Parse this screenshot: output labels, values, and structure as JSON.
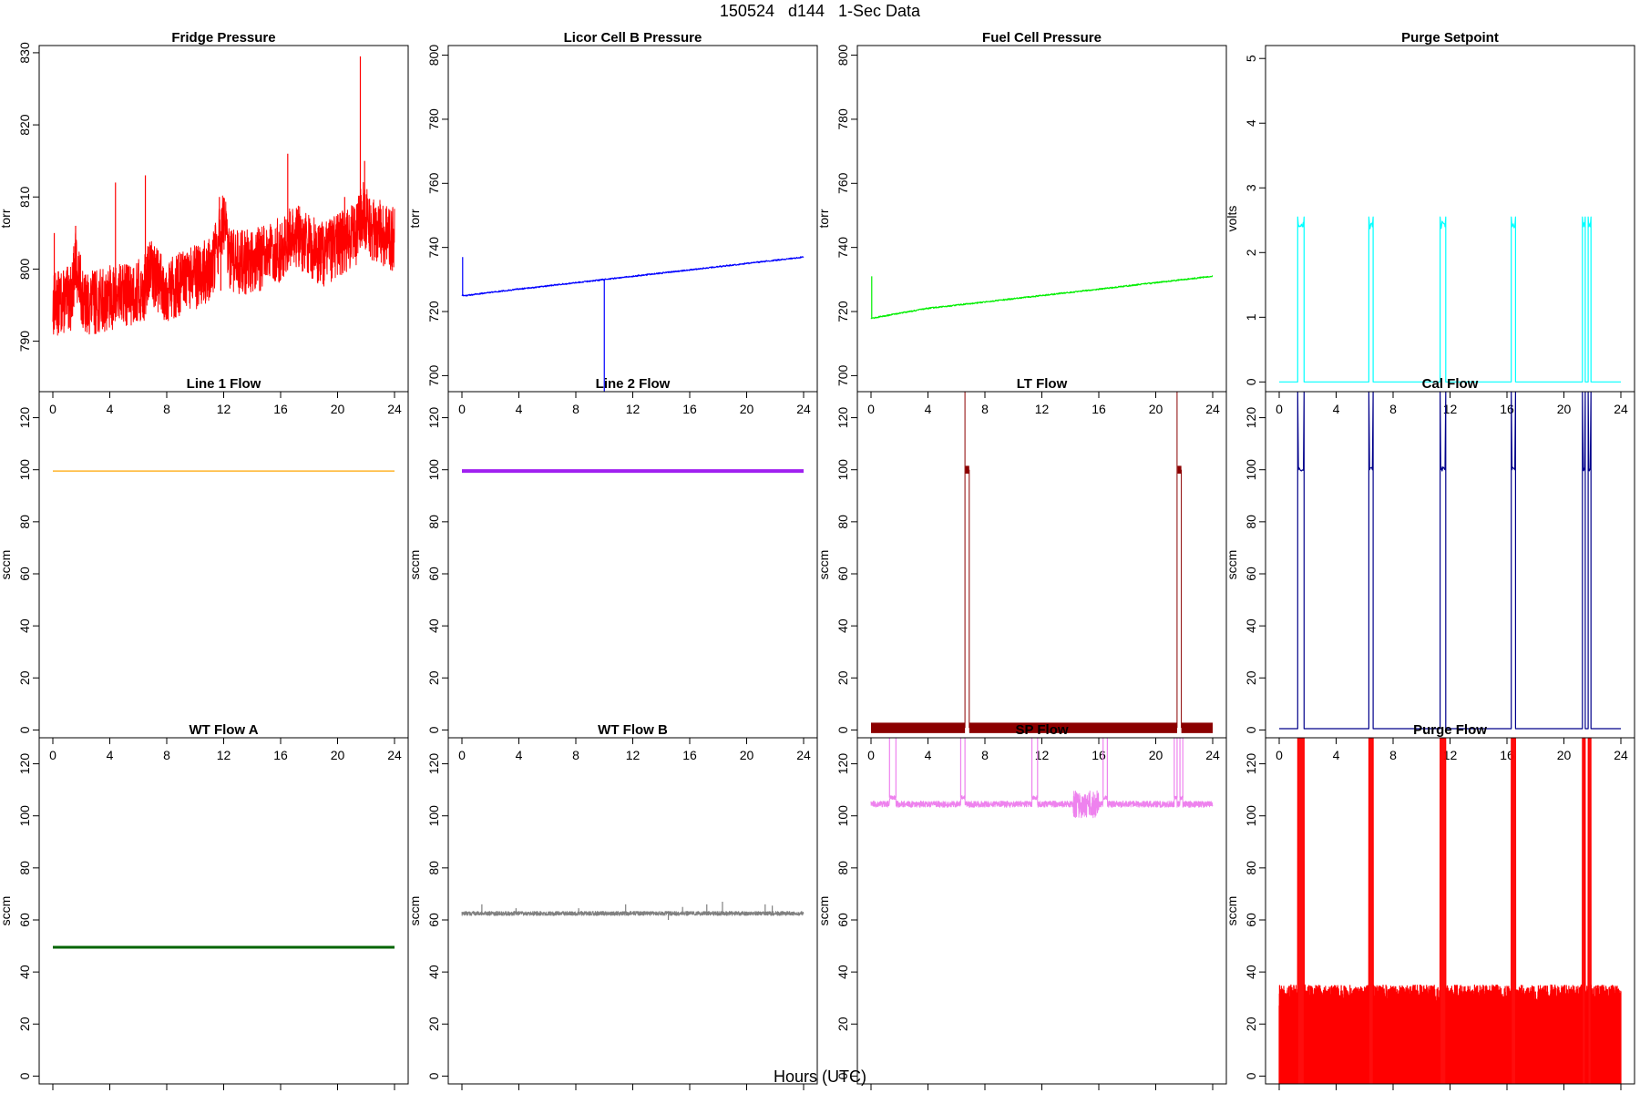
{
  "page": {
    "title": "150524   d144   1-Sec Data",
    "x_axis_label": "Hours (UTC)"
  },
  "chart_data": [
    {
      "type": "line",
      "title": "Fridge Pressure",
      "ylabel": "torr",
      "color": "#ff0000",
      "xlim": [
        0,
        24
      ],
      "ylim": [
        783,
        831
      ],
      "yticks": [
        790,
        800,
        810,
        820,
        830
      ],
      "style": "noisy",
      "noise": 4.5,
      "series": [
        {
          "x": [
            0,
            1.3,
            1.6,
            2.2,
            4,
            6.4,
            6.8,
            8,
            11.2,
            12.0,
            12.4,
            14,
            16.3,
            16.8,
            19,
            21.3,
            21.8,
            22.2,
            24
          ],
          "y": [
            795,
            796,
            801,
            795,
            796,
            797,
            800,
            797,
            800,
            807,
            801,
            801,
            803,
            805,
            802,
            805,
            808,
            806,
            804
          ]
        }
      ],
      "spikes": [
        [
          0.1,
          805
        ],
        [
          1.6,
          806
        ],
        [
          4.4,
          812
        ],
        [
          6.5,
          813
        ],
        [
          11.7,
          810
        ],
        [
          11.8,
          797
        ],
        [
          16.5,
          816
        ],
        [
          20.5,
          810
        ],
        [
          21.6,
          829.5
        ],
        [
          21.9,
          815
        ]
      ]
    },
    {
      "type": "line",
      "title": "Licor Cell B Pressure",
      "ylabel": "torr",
      "color": "#0000ff",
      "xlim": [
        0,
        24
      ],
      "ylim": [
        695,
        803
      ],
      "yticks": [
        700,
        720,
        740,
        760,
        780,
        800
      ],
      "style": "line",
      "series": [
        {
          "x": [
            0,
            0.3,
            2,
            4,
            6,
            8,
            10,
            12,
            14,
            16,
            18,
            20,
            22,
            24
          ],
          "y": [
            725,
            725,
            726,
            727,
            728,
            729,
            730,
            731,
            732,
            733,
            734,
            735,
            736,
            737
          ]
        }
      ],
      "spikes": [
        [
          0.05,
          737
        ],
        [
          10,
          695
        ]
      ]
    },
    {
      "type": "line",
      "title": "Fuel Cell Pressure",
      "ylabel": "torr",
      "color": "#00ee00",
      "xlim": [
        0,
        24
      ],
      "ylim": [
        695,
        803
      ],
      "yticks": [
        700,
        720,
        740,
        760,
        780,
        800
      ],
      "style": "line",
      "series": [
        {
          "x": [
            0,
            0.2,
            2,
            4,
            6,
            8,
            10,
            12,
            14,
            16,
            18,
            20,
            22,
            24
          ],
          "y": [
            718,
            718,
            719.5,
            721,
            722,
            723,
            724,
            725,
            726,
            727,
            728,
            729,
            730,
            731
          ]
        }
      ],
      "spikes": [
        [
          0.05,
          731
        ]
      ]
    },
    {
      "type": "line",
      "title": "Purge Setpoint",
      "ylabel": "volts",
      "color": "#00ffff",
      "xlim": [
        0,
        24
      ],
      "ylim": [
        -0.15,
        5.2
      ],
      "yticks": [
        0,
        1,
        2,
        3,
        4,
        5
      ],
      "style": "pulses",
      "base": 0,
      "level": 2.4,
      "peak": 2.55,
      "pulses": [
        [
          1.3,
          1.75
        ],
        [
          6.3,
          6.6
        ],
        [
          11.3,
          11.7
        ],
        [
          16.3,
          16.6
        ],
        [
          21.3,
          21.5
        ],
        [
          21.7,
          21.9
        ]
      ]
    },
    {
      "type": "line",
      "title": "Line 1 Flow",
      "ylabel": "sccm",
      "color": "#ffa500",
      "xlim": [
        0,
        24
      ],
      "ylim": [
        -3,
        130
      ],
      "yticks": [
        0,
        20,
        40,
        60,
        80,
        100,
        120
      ],
      "style": "flat",
      "level": 99.5,
      "width": 1.2
    },
    {
      "type": "line",
      "title": "Line 2 Flow",
      "ylabel": "sccm",
      "color": "#a020f0",
      "xlim": [
        0,
        24
      ],
      "ylim": [
        -3,
        130
      ],
      "yticks": [
        0,
        20,
        40,
        60,
        80,
        100,
        120
      ],
      "style": "flat",
      "level": 99.5,
      "width": 4
    },
    {
      "type": "line",
      "title": "LT Flow",
      "ylabel": "sccm",
      "color": "#8b0000",
      "xlim": [
        0,
        24
      ],
      "ylim": [
        -3,
        130
      ],
      "yticks": [
        0,
        20,
        40,
        60,
        80,
        100,
        120
      ],
      "style": "band",
      "base": 0.8,
      "bandwidth": 4,
      "level": 100,
      "pulses": [
        [
          6.6,
          6.9
        ],
        [
          21.5,
          21.8
        ]
      ]
    },
    {
      "type": "line",
      "title": "Cal Flow",
      "ylabel": "sccm",
      "color": "#00008b",
      "xlim": [
        0,
        24
      ],
      "ylim": [
        -3,
        130
      ],
      "yticks": [
        0,
        20,
        40,
        60,
        80,
        100,
        120
      ],
      "style": "pulses",
      "base": 0.5,
      "level": 100,
      "peak": 130,
      "pulses": [
        [
          1.3,
          1.75
        ],
        [
          6.3,
          6.6
        ],
        [
          11.3,
          11.7
        ],
        [
          16.3,
          16.6
        ],
        [
          21.3,
          21.5
        ],
        [
          21.7,
          21.9
        ]
      ]
    },
    {
      "type": "line",
      "title": "WT Flow A",
      "ylabel": "sccm",
      "color": "#006400",
      "xlim": [
        0,
        24
      ],
      "ylim": [
        -3,
        130
      ],
      "yticks": [
        0,
        20,
        40,
        60,
        80,
        100,
        120
      ],
      "style": "flat",
      "level": 49.5,
      "width": 3
    },
    {
      "type": "line",
      "title": "WT Flow B",
      "ylabel": "sccm",
      "color": "#808080",
      "xlim": [
        0,
        24
      ],
      "ylim": [
        -3,
        130
      ],
      "yticks": [
        0,
        20,
        40,
        60,
        80,
        100,
        120
      ],
      "style": "noisy",
      "noise": 0.8,
      "series": [
        {
          "x": [
            0,
            24
          ],
          "y": [
            62.5,
            62.5
          ]
        }
      ],
      "spikes": [
        [
          1.4,
          66
        ],
        [
          3.8,
          64.5
        ],
        [
          8.2,
          64.5
        ],
        [
          11.5,
          66
        ],
        [
          14.5,
          60
        ],
        [
          15.5,
          65
        ],
        [
          17.2,
          66
        ],
        [
          18.3,
          67
        ],
        [
          21.3,
          66
        ],
        [
          21.8,
          65.5
        ]
      ]
    },
    {
      "type": "line",
      "title": "SP Flow",
      "ylabel": "sccm",
      "color": "#ee82ee",
      "xlim": [
        0,
        24
      ],
      "ylim": [
        -3,
        130
      ],
      "yticks": [
        0,
        20,
        40,
        60,
        80,
        100,
        120
      ],
      "style": "sp",
      "base": 104.5,
      "noise": 1.2,
      "level": 107,
      "peak": 130,
      "pulses": [
        [
          1.3,
          1.75
        ],
        [
          6.3,
          6.6
        ],
        [
          11.3,
          11.7
        ],
        [
          16.3,
          16.6
        ],
        [
          21.3,
          21.5
        ],
        [
          21.7,
          21.9
        ]
      ]
    },
    {
      "type": "line",
      "title": "Purge Flow",
      "ylabel": "sccm",
      "color": "#ff0000",
      "xlim": [
        0,
        24
      ],
      "ylim": [
        -3,
        130
      ],
      "yticks": [
        0,
        20,
        40,
        60,
        80,
        100,
        120
      ],
      "style": "purge",
      "base": 0,
      "top": 31,
      "pulses": [
        [
          1.3,
          1.75
        ],
        [
          6.3,
          6.6
        ],
        [
          11.3,
          11.7
        ],
        [
          16.3,
          16.6
        ],
        [
          21.3,
          21.5
        ],
        [
          21.7,
          21.9
        ]
      ]
    }
  ]
}
